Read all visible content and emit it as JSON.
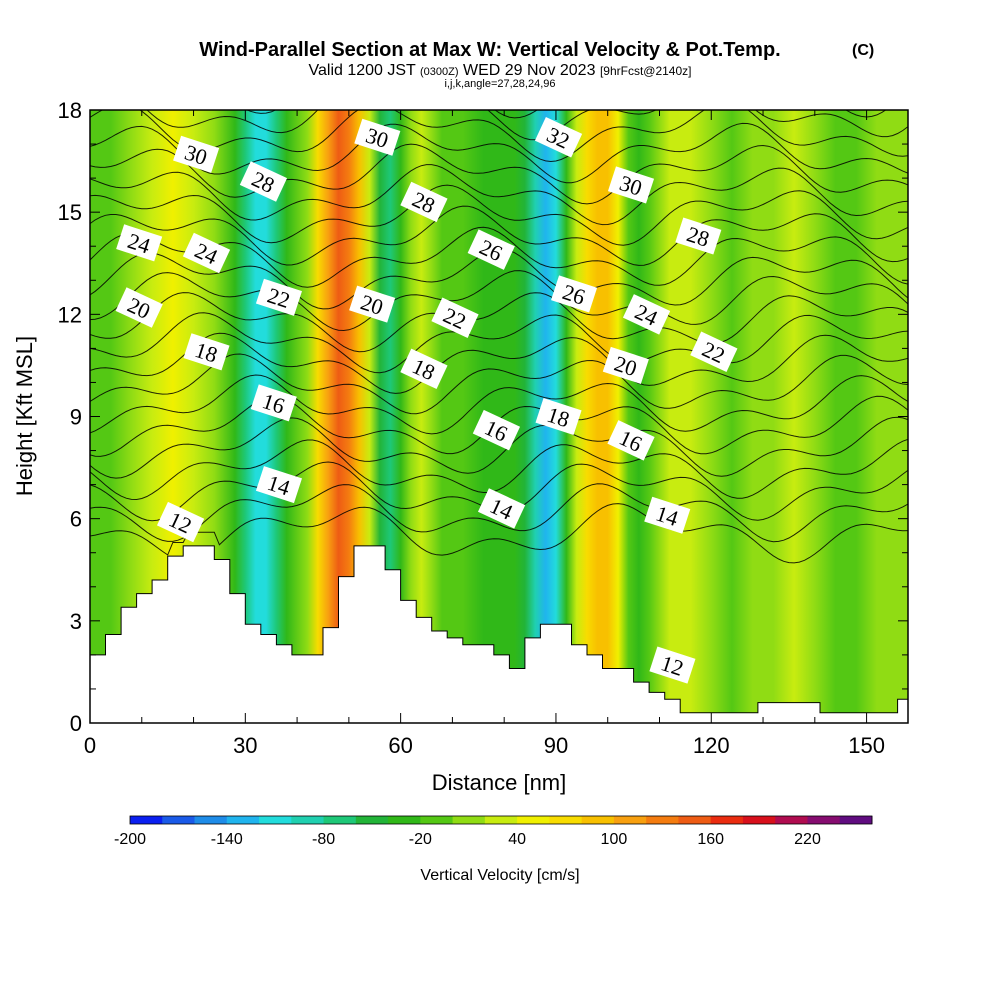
{
  "header": {
    "title": "Wind-Parallel Section at Max W: Vertical Velocity & Pot.Temp.",
    "copyright": "(C)",
    "valid_prefix": "Valid 1200 JST",
    "valid_utc": "(0300Z)",
    "valid_date": "WED 29 Nov 2023",
    "forecast": "[9hrFcst@2140z]",
    "grid_info": "i,j,k,angle=27,28,24,96"
  },
  "chart_data": {
    "type": "heatmap",
    "xlabel": "Distance [nm]",
    "ylabel": "Height [Kft MSL]",
    "xlim": [
      0,
      158
    ],
    "ylim": [
      0,
      18
    ],
    "x_ticks": [
      0,
      30,
      60,
      90,
      120,
      150
    ],
    "y_ticks": [
      0,
      3,
      6,
      9,
      12,
      15,
      18
    ],
    "terrain": {
      "x": [
        0,
        3,
        3,
        6,
        6,
        9,
        9,
        12,
        12,
        15,
        15,
        18,
        18,
        21,
        21,
        24,
        24,
        27,
        27,
        30,
        30,
        33,
        33,
        36,
        36,
        39,
        39,
        45,
        45,
        48,
        48,
        51,
        51,
        57,
        57,
        60,
        60,
        63,
        63,
        66,
        66,
        69,
        69,
        72,
        72,
        78,
        78,
        81,
        81,
        84,
        84,
        87,
        87,
        93,
        93,
        96,
        96,
        99,
        99,
        105,
        105,
        108,
        108,
        111,
        111,
        114,
        114,
        120,
        120,
        129,
        129,
        132,
        132,
        141,
        141,
        153,
        153,
        156,
        156,
        158
      ],
      "height": [
        2.0,
        2.0,
        2.6,
        2.6,
        3.4,
        3.4,
        3.8,
        3.8,
        4.2,
        4.2,
        4.9,
        4.9,
        5.2,
        5.2,
        5.2,
        5.2,
        4.8,
        4.8,
        3.8,
        3.8,
        2.9,
        2.9,
        2.6,
        2.6,
        2.3,
        2.3,
        2.0,
        2.0,
        2.8,
        2.8,
        4.3,
        4.3,
        5.2,
        5.2,
        4.5,
        4.5,
        3.6,
        3.6,
        3.1,
        3.1,
        2.7,
        2.7,
        2.5,
        2.5,
        2.3,
        2.3,
        2.0,
        2.0,
        1.6,
        1.6,
        2.5,
        2.5,
        2.9,
        2.9,
        2.3,
        2.3,
        2.0,
        2.0,
        1.6,
        1.6,
        1.2,
        1.2,
        0.9,
        0.9,
        0.7,
        0.7,
        0.3,
        0.3,
        0.3,
        0.3,
        0.6,
        0.6,
        0.6,
        0.6,
        0.3,
        0.3,
        0.3,
        0.3,
        0.7,
        0.7
      ]
    },
    "vertical_velocity": {
      "units": "cm/s",
      "x": [
        0,
        4,
        8,
        12,
        16,
        20,
        24,
        28,
        30,
        32,
        34,
        36,
        38,
        42,
        44,
        46,
        48,
        50,
        52,
        54,
        56,
        58,
        60,
        62,
        64,
        66,
        68,
        72,
        76,
        80,
        82,
        84,
        86,
        88,
        90,
        92,
        94,
        96,
        98,
        100,
        102,
        104,
        106,
        108,
        112,
        116,
        120,
        124,
        128,
        132,
        136,
        140,
        144,
        148,
        152,
        156,
        158
      ],
      "values": [
        -20,
        -20,
        10,
        30,
        40,
        30,
        0,
        -40,
        -80,
        -120,
        -110,
        -70,
        -40,
        10,
        60,
        110,
        140,
        130,
        90,
        20,
        -60,
        -80,
        -40,
        0,
        20,
        0,
        -10,
        -20,
        -30,
        -30,
        -40,
        -60,
        -90,
        -140,
        -120,
        -40,
        20,
        60,
        90,
        80,
        40,
        -10,
        -30,
        -20,
        20,
        30,
        10,
        -10,
        0,
        10,
        20,
        10,
        -10,
        -20,
        0,
        10,
        10
      ]
    },
    "colorbar": {
      "label": "Vertical Velocity [cm/s]",
      "levels": [
        -200,
        -180,
        -160,
        -140,
        -120,
        -100,
        -80,
        -60,
        -40,
        -20,
        0,
        20,
        40,
        60,
        80,
        100,
        120,
        140,
        160,
        180,
        200,
        220,
        240
      ],
      "colors": [
        "#0a1ff0",
        "#1a5ae8",
        "#1e8ce8",
        "#20b4ee",
        "#22dcdc",
        "#20d0b0",
        "#1ec878",
        "#22b438",
        "#30b818",
        "#54c814",
        "#90dc14",
        "#c8ec10",
        "#f0f000",
        "#f8dc00",
        "#f8c000",
        "#f8a010",
        "#f47c10",
        "#ee5c14",
        "#ea2c10",
        "#d8101c",
        "#b00c50",
        "#860c70",
        "#600c80"
      ],
      "tick_labels": [
        "-200",
        "-140",
        "-80",
        "-20",
        "40",
        "100",
        "160",
        "220"
      ]
    },
    "theta_contours": {
      "units": "C",
      "levels": [
        12,
        13,
        14,
        15,
        16,
        17,
        18,
        19,
        20,
        21,
        22,
        23,
        24,
        25,
        26,
        27,
        28,
        29,
        30,
        31,
        32,
        33,
        34
      ],
      "label_texts": [
        "30",
        "28",
        "30",
        "32",
        "24",
        "28",
        "30",
        "24",
        "22",
        "26",
        "28",
        "20",
        "20",
        "22",
        "26",
        "24",
        "18",
        "18",
        "20",
        "22",
        "16",
        "16",
        "18",
        "16",
        "14",
        "14",
        "14",
        "12",
        "12"
      ],
      "labels": [
        {
          "text": "30",
          "x": 20.5,
          "y": 16.7
        },
        {
          "text": "28",
          "x": 33.5,
          "y": 15.9
        },
        {
          "text": "30",
          "x": 55.5,
          "y": 17.2
        },
        {
          "text": "32",
          "x": 90.5,
          "y": 17.2
        },
        {
          "text": "24",
          "x": 9.5,
          "y": 14.1
        },
        {
          "text": "28",
          "x": 64.5,
          "y": 15.3
        },
        {
          "text": "30",
          "x": 104.5,
          "y": 15.8
        },
        {
          "text": "24",
          "x": 22.5,
          "y": 13.8
        },
        {
          "text": "22",
          "x": 36.5,
          "y": 12.5
        },
        {
          "text": "26",
          "x": 77.5,
          "y": 13.9
        },
        {
          "text": "28",
          "x": 117.5,
          "y": 14.3
        },
        {
          "text": "20",
          "x": 9.5,
          "y": 12.2
        },
        {
          "text": "20",
          "x": 54.5,
          "y": 12.3
        },
        {
          "text": "22",
          "x": 70.5,
          "y": 11.9
        },
        {
          "text": "26",
          "x": 93.5,
          "y": 12.6
        },
        {
          "text": "24",
          "x": 107.5,
          "y": 12.0
        },
        {
          "text": "18",
          "x": 22.5,
          "y": 10.9
        },
        {
          "text": "18",
          "x": 64.5,
          "y": 10.4
        },
        {
          "text": "20",
          "x": 103.5,
          "y": 10.5
        },
        {
          "text": "22",
          "x": 120.5,
          "y": 10.9
        },
        {
          "text": "16",
          "x": 35.5,
          "y": 9.4
        },
        {
          "text": "16",
          "x": 78.5,
          "y": 8.6
        },
        {
          "text": "18",
          "x": 90.5,
          "y": 9.0
        },
        {
          "text": "16",
          "x": 104.5,
          "y": 8.3
        },
        {
          "text": "14",
          "x": 36.5,
          "y": 7.0
        },
        {
          "text": "14",
          "x": 79.5,
          "y": 6.3
        },
        {
          "text": "14",
          "x": 111.5,
          "y": 6.1
        },
        {
          "text": "12",
          "x": 17.5,
          "y": 5.9
        },
        {
          "text": "12",
          "x": 112.5,
          "y": 1.7
        }
      ]
    }
  }
}
